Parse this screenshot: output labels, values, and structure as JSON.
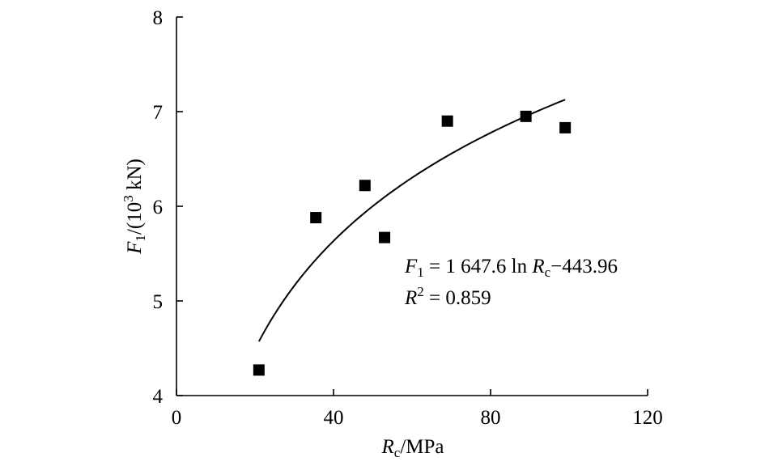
{
  "chart_data": {
    "type": "scatter",
    "x_label": {
      "main": "R",
      "sub": "c",
      "unit": "/MPa"
    },
    "y_label": {
      "main": "F",
      "sub": "1",
      "unit_open": "/(10",
      "sup": "3",
      "unit_close": " kN)"
    },
    "xlim": [
      0,
      120
    ],
    "ylim": [
      4,
      8
    ],
    "x_ticks": [
      0,
      40,
      80,
      120
    ],
    "y_ticks": [
      4,
      5,
      6,
      7,
      8
    ],
    "points": [
      {
        "x": 21,
        "y": 4.27
      },
      {
        "x": 35.5,
        "y": 5.88
      },
      {
        "x": 48,
        "y": 6.22
      },
      {
        "x": 53,
        "y": 5.67
      },
      {
        "x": 69,
        "y": 6.9
      },
      {
        "x": 89,
        "y": 6.95
      },
      {
        "x": 99,
        "y": 6.83
      }
    ],
    "fit": {
      "type": "log",
      "x_range": [
        21,
        99
      ]
    },
    "equation": {
      "f_main": "F",
      "f_sub": "1",
      "eq_mid": " = 1 647.6 ln ",
      "r_main": "R",
      "r_sub": "c",
      "eq_tail": "−443.96",
      "r2_main": "R",
      "r2_sup": "2",
      "r2_tail": " = 0.859"
    },
    "marker": "filled-square",
    "color": "#000000"
  }
}
